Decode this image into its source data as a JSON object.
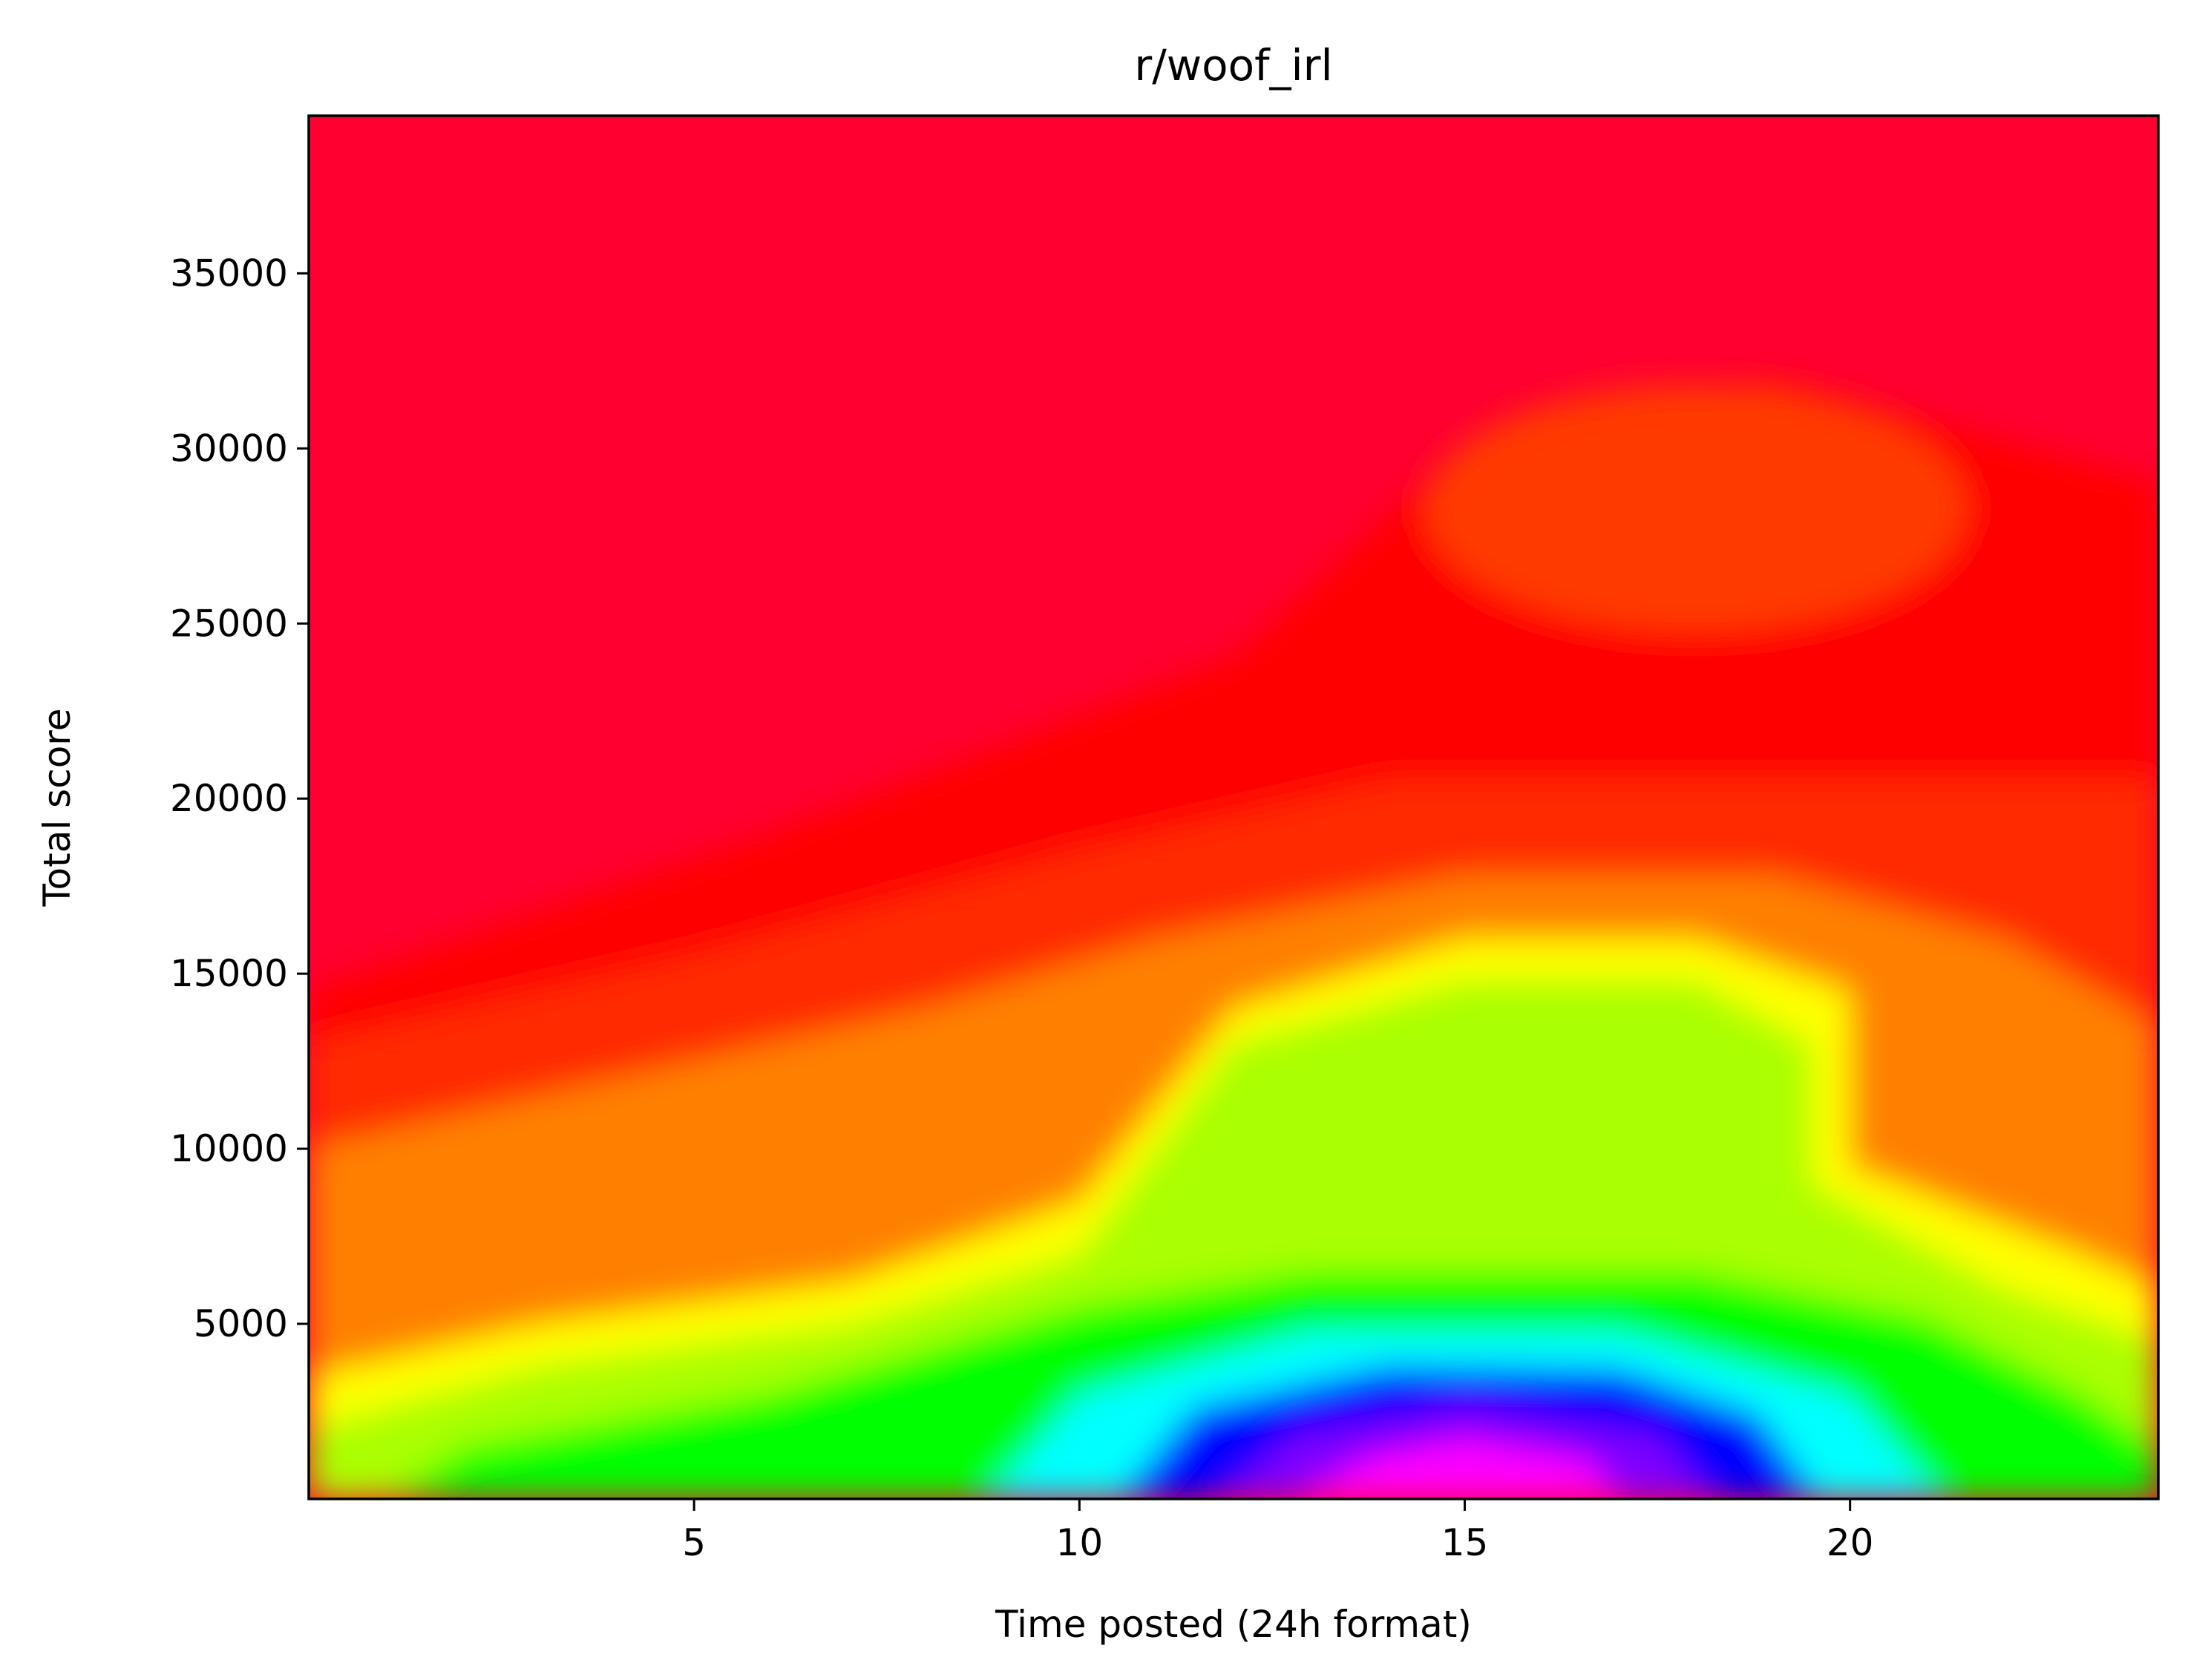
{
  "chart_data": {
    "type": "heatmap",
    "title": "r/woof_irl",
    "xlabel": "Time posted (24h format)",
    "ylabel": "Total score",
    "xlim": [
      0,
      24
    ],
    "ylim": [
      0,
      39500
    ],
    "x_ticks": [
      5,
      10,
      15,
      20
    ],
    "y_ticks": [
      5000,
      10000,
      15000,
      20000,
      25000,
      30000,
      35000
    ],
    "colormap": "gist_rainbow_r (magenta = highest density, red = lowest)",
    "colorscale": [
      "#ff00ff",
      "#0000ff",
      "#00ffff",
      "#00ff00",
      "#ffff00",
      "#ff8000",
      "#ff0000",
      "#ff0030"
    ],
    "density_features": [
      {
        "x": 15,
        "y": 800,
        "level": "peak (magenta/blue)"
      },
      {
        "x": 15,
        "y": 12000,
        "level": "medium (green/yellow)"
      },
      {
        "x": 18,
        "y": 28300,
        "level": "slight local bump (orange-red)"
      }
    ],
    "grid": false
  }
}
